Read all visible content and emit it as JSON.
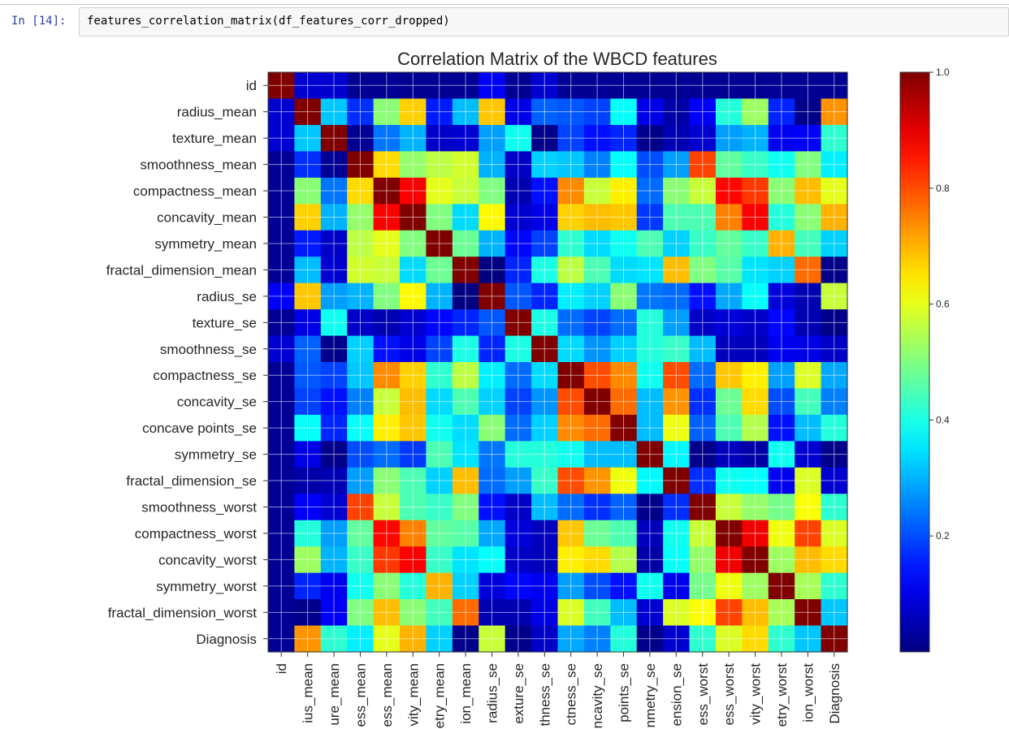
{
  "cell": {
    "prompt": "In [14]:",
    "code": "features_correlation_matrix(df_features_corr_dropped)"
  },
  "chart_data": {
    "type": "heatmap",
    "title": "Correlation Matrix of the WBCD features",
    "colormap": "jet",
    "grid": true,
    "colorbar": {
      "position": "right",
      "ticks": [
        0.2,
        0.4,
        0.6,
        0.8,
        1.0
      ]
    },
    "labels": [
      "id",
      "radius_mean",
      "texture_mean",
      "smoothness_mean",
      "compactness_mean",
      "concavity_mean",
      "symmetry_mean",
      "fractal_dimension_mean",
      "radius_se",
      "texture_se",
      "smoothness_se",
      "compactness_se",
      "concavity_se",
      "concave points_se",
      "symmetry_se",
      "fractal_dimension_se",
      "smoothness_worst",
      "compactness_worst",
      "concavity_worst",
      "symmetry_worst",
      "fractal_dimension_worst",
      "Diagnosis"
    ],
    "x_tick_labels": [
      "id",
      "ius_mean",
      "ure_mean",
      "ess_mean",
      "ess_mean",
      "vity_mean",
      "etry_mean",
      "ion_mean",
      "radius_se",
      "exture_se",
      "thness_se",
      "ctness_se",
      "ncavity_se",
      "points_se",
      "nmetry_se",
      "ension_se",
      "ess_worst",
      "ess_worst",
      "vity_worst",
      "etry_worst",
      "ion_worst",
      "Diagnosis"
    ],
    "matrix": [
      [
        1.0,
        0.08,
        0.08,
        0.02,
        0.02,
        0.02,
        0.02,
        0.02,
        0.12,
        0.02,
        0.08,
        0.02,
        0.02,
        0.02,
        0.02,
        0.02,
        0.02,
        0.02,
        0.02,
        0.02,
        0.02,
        0.02
      ],
      [
        0.08,
        1.0,
        0.32,
        0.17,
        0.51,
        0.67,
        0.15,
        0.31,
        0.68,
        0.1,
        0.22,
        0.21,
        0.19,
        0.38,
        0.1,
        0.04,
        0.12,
        0.41,
        0.53,
        0.16,
        0.01,
        0.73
      ],
      [
        0.08,
        0.32,
        1.0,
        0.02,
        0.24,
        0.3,
        0.07,
        0.08,
        0.28,
        0.39,
        0.01,
        0.19,
        0.14,
        0.16,
        0.01,
        0.05,
        0.08,
        0.28,
        0.3,
        0.11,
        0.12,
        0.42
      ],
      [
        0.02,
        0.17,
        0.02,
        1.0,
        0.66,
        0.52,
        0.56,
        0.58,
        0.3,
        0.07,
        0.33,
        0.32,
        0.25,
        0.38,
        0.2,
        0.28,
        0.81,
        0.47,
        0.43,
        0.39,
        0.5,
        0.36
      ],
      [
        0.02,
        0.51,
        0.24,
        0.66,
        1.0,
        0.88,
        0.6,
        0.57,
        0.5,
        0.05,
        0.14,
        0.74,
        0.57,
        0.64,
        0.23,
        0.51,
        0.57,
        0.87,
        0.82,
        0.51,
        0.69,
        0.6
      ],
      [
        0.02,
        0.67,
        0.3,
        0.52,
        0.88,
        1.0,
        0.5,
        0.34,
        0.63,
        0.08,
        0.1,
        0.67,
        0.69,
        0.68,
        0.18,
        0.45,
        0.45,
        0.75,
        0.88,
        0.41,
        0.51,
        0.7
      ],
      [
        0.02,
        0.15,
        0.07,
        0.56,
        0.6,
        0.5,
        1.0,
        0.48,
        0.3,
        0.13,
        0.19,
        0.42,
        0.34,
        0.39,
        0.45,
        0.33,
        0.43,
        0.47,
        0.43,
        0.7,
        0.44,
        0.33
      ],
      [
        0.02,
        0.31,
        0.08,
        0.58,
        0.57,
        0.34,
        0.48,
        1.0,
        0.0,
        0.16,
        0.4,
        0.56,
        0.45,
        0.34,
        0.35,
        0.69,
        0.5,
        0.46,
        0.35,
        0.33,
        0.77,
        0.01
      ],
      [
        0.12,
        0.68,
        0.28,
        0.3,
        0.5,
        0.63,
        0.3,
        0.0,
        1.0,
        0.21,
        0.16,
        0.36,
        0.33,
        0.51,
        0.24,
        0.23,
        0.14,
        0.29,
        0.38,
        0.09,
        0.05,
        0.57
      ],
      [
        0.02,
        0.1,
        0.39,
        0.07,
        0.05,
        0.08,
        0.13,
        0.16,
        0.21,
        1.0,
        0.4,
        0.23,
        0.19,
        0.23,
        0.41,
        0.28,
        0.07,
        0.09,
        0.07,
        0.13,
        0.05,
        0.01
      ],
      [
        0.08,
        0.22,
        0.01,
        0.33,
        0.14,
        0.1,
        0.19,
        0.4,
        0.16,
        0.4,
        1.0,
        0.34,
        0.27,
        0.33,
        0.41,
        0.43,
        0.31,
        0.06,
        0.06,
        0.11,
        0.1,
        0.07
      ],
      [
        0.02,
        0.21,
        0.19,
        0.32,
        0.74,
        0.67,
        0.42,
        0.56,
        0.36,
        0.23,
        0.34,
        1.0,
        0.8,
        0.74,
        0.39,
        0.8,
        0.23,
        0.68,
        0.64,
        0.28,
        0.59,
        0.29
      ],
      [
        0.02,
        0.19,
        0.14,
        0.25,
        0.57,
        0.69,
        0.34,
        0.45,
        0.33,
        0.19,
        0.27,
        0.8,
        1.0,
        0.77,
        0.31,
        0.73,
        0.17,
        0.48,
        0.66,
        0.2,
        0.44,
        0.25
      ],
      [
        0.02,
        0.38,
        0.16,
        0.38,
        0.64,
        0.68,
        0.39,
        0.34,
        0.51,
        0.23,
        0.33,
        0.74,
        0.77,
        1.0,
        0.31,
        0.61,
        0.22,
        0.45,
        0.55,
        0.14,
        0.31,
        0.41
      ],
      [
        0.02,
        0.1,
        0.01,
        0.2,
        0.23,
        0.18,
        0.45,
        0.35,
        0.24,
        0.41,
        0.41,
        0.39,
        0.31,
        0.31,
        1.0,
        0.37,
        0.01,
        0.06,
        0.04,
        0.39,
        0.08,
        0.01
      ],
      [
        0.02,
        0.04,
        0.05,
        0.28,
        0.51,
        0.45,
        0.33,
        0.69,
        0.23,
        0.28,
        0.43,
        0.8,
        0.73,
        0.61,
        0.37,
        1.0,
        0.17,
        0.39,
        0.38,
        0.11,
        0.59,
        0.08
      ],
      [
        0.02,
        0.12,
        0.08,
        0.81,
        0.57,
        0.45,
        0.43,
        0.5,
        0.14,
        0.07,
        0.31,
        0.23,
        0.17,
        0.22,
        0.01,
        0.17,
        1.0,
        0.57,
        0.52,
        0.49,
        0.62,
        0.42
      ],
      [
        0.02,
        0.41,
        0.28,
        0.47,
        0.87,
        0.75,
        0.47,
        0.46,
        0.29,
        0.09,
        0.06,
        0.68,
        0.48,
        0.45,
        0.06,
        0.39,
        0.57,
        1.0,
        0.89,
        0.61,
        0.81,
        0.59
      ],
      [
        0.02,
        0.53,
        0.3,
        0.43,
        0.82,
        0.88,
        0.43,
        0.35,
        0.38,
        0.07,
        0.06,
        0.64,
        0.66,
        0.55,
        0.04,
        0.38,
        0.52,
        0.89,
        1.0,
        0.53,
        0.69,
        0.66
      ],
      [
        0.02,
        0.16,
        0.11,
        0.39,
        0.51,
        0.41,
        0.7,
        0.33,
        0.09,
        0.13,
        0.11,
        0.28,
        0.2,
        0.14,
        0.39,
        0.11,
        0.49,
        0.61,
        0.53,
        1.0,
        0.54,
        0.42
      ],
      [
        0.02,
        0.01,
        0.12,
        0.5,
        0.69,
        0.51,
        0.44,
        0.77,
        0.05,
        0.05,
        0.1,
        0.59,
        0.44,
        0.31,
        0.08,
        0.59,
        0.62,
        0.81,
        0.69,
        0.54,
        1.0,
        0.32
      ],
      [
        0.02,
        0.73,
        0.42,
        0.36,
        0.6,
        0.7,
        0.33,
        0.01,
        0.57,
        0.01,
        0.07,
        0.29,
        0.25,
        0.41,
        0.01,
        0.08,
        0.42,
        0.59,
        0.66,
        0.42,
        0.32,
        1.0
      ]
    ]
  }
}
